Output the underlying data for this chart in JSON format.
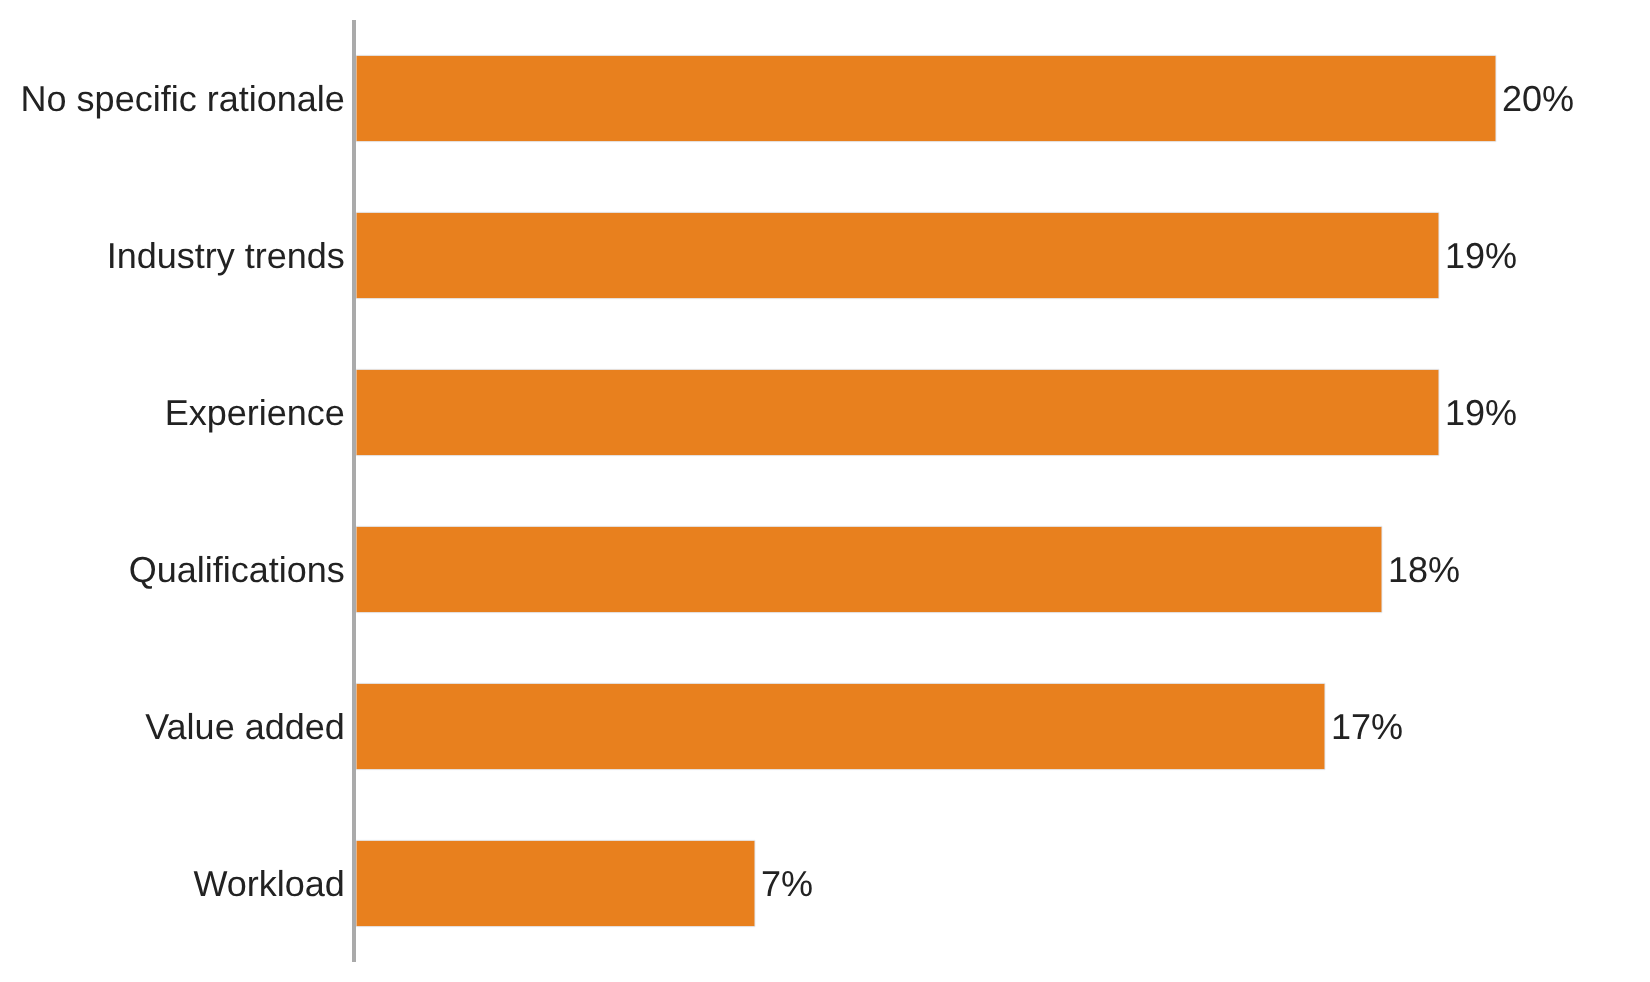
{
  "chart_data": {
    "type": "bar",
    "orientation": "horizontal",
    "categories": [
      "No specific rationale",
      "Industry trends",
      "Experience",
      "Qualifications",
      "Value added",
      "Workload"
    ],
    "values": [
      20,
      19,
      19,
      18,
      17,
      7
    ],
    "value_labels": [
      "20%",
      "19%",
      "19%",
      "18%",
      "17%",
      "7%"
    ],
    "color": "#e8801e"
  }
}
